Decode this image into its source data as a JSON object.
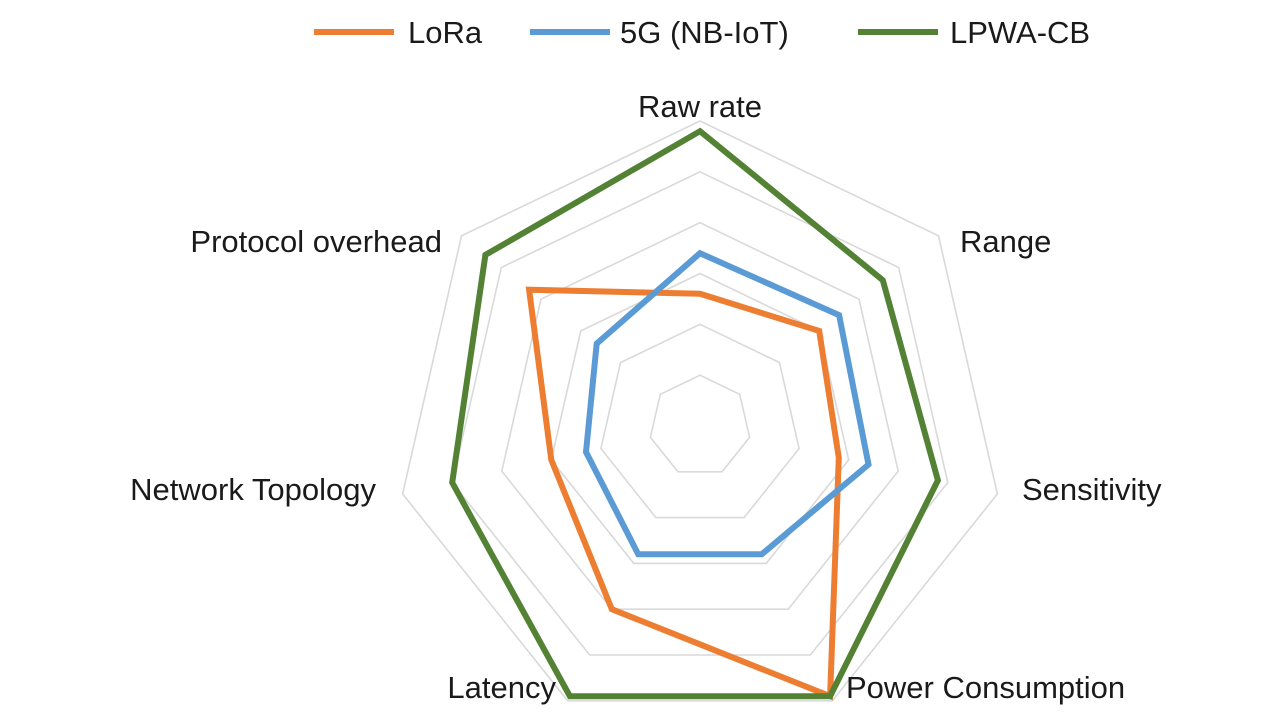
{
  "chart_data": {
    "type": "radar",
    "title": "",
    "axes": [
      "Raw rate",
      "Range",
      "Sensitivity",
      "Power Consumption",
      "Latency",
      "Network Topology",
      "Protocol overhead"
    ],
    "range": [
      0,
      6
    ],
    "grid_levels": [
      1,
      2,
      3,
      4,
      5,
      6
    ],
    "legend_position": "top",
    "series": [
      {
        "name": "LoRa",
        "color": "#ED7D31",
        "values": [
          2.6,
          3.0,
          2.8,
          5.9,
          4.0,
          3.0,
          4.3
        ]
      },
      {
        "name": "5G (NB-IoT)",
        "color": "#5B9BD5",
        "values": [
          3.4,
          3.5,
          3.4,
          2.8,
          2.8,
          2.3,
          2.6
        ]
      },
      {
        "name": "LPWA-CB",
        "color": "#548235",
        "values": [
          5.8,
          4.6,
          4.8,
          5.9,
          5.9,
          5.0,
          5.4
        ]
      }
    ]
  }
}
